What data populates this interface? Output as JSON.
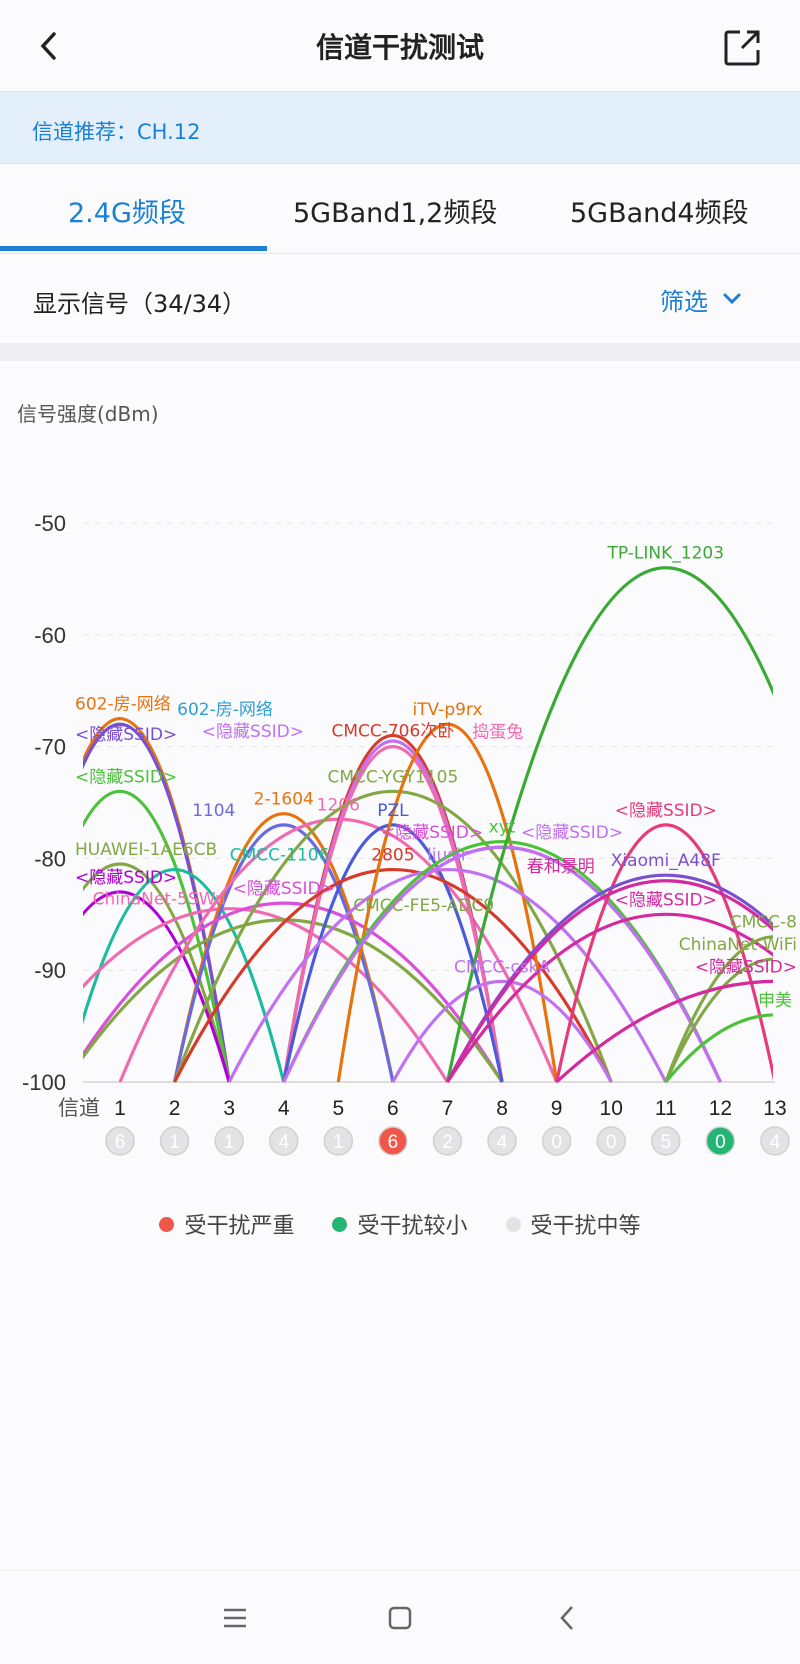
{
  "header": {
    "title": "信道干扰测试",
    "back_icon": "chevron-left-icon",
    "share_icon": "share-external-icon"
  },
  "banner": {
    "text": "信道推荐：CH.12"
  },
  "tabs": [
    {
      "label": "2.4G频段",
      "active": true
    },
    {
      "label": "5GBand1,2频段",
      "active": false
    },
    {
      "label": "5GBand4频段",
      "active": false
    }
  ],
  "filter": {
    "label": "显示信号（34/34）",
    "button": "筛选",
    "icon": "chevron-down-icon"
  },
  "chart_data": {
    "type": "line",
    "ylabel": "信号强度(dBm)",
    "xlabel": "信道",
    "ylim": [
      -100,
      -45
    ],
    "yticks": [
      -50,
      -60,
      -70,
      -80,
      -90,
      -100
    ],
    "channels": [
      1,
      2,
      3,
      4,
      5,
      6,
      7,
      8,
      9,
      10,
      11,
      12,
      13
    ],
    "grid": true,
    "networks": [
      {
        "label": "602-房-网络",
        "channel": 1,
        "dbm": -67.5,
        "width": 2,
        "color": "#e8720c"
      },
      {
        "label": "602-房-网络",
        "channel": 1,
        "dbm": -68,
        "width": 2,
        "color": "#2aa0d8"
      },
      {
        "label": "<隐藏SSID>",
        "channel": 1,
        "dbm": -68,
        "width": 2,
        "color": "#7b4fd0"
      },
      {
        "label": "<隐藏SSID>",
        "channel": 1,
        "dbm": -74,
        "width": 2,
        "color": "#4cc23a"
      },
      {
        "label": "HUAWEI-1AE6CB",
        "channel": 1,
        "dbm": -80.5,
        "width": 2,
        "color": "#82a843"
      },
      {
        "label": "<隐藏SSID>",
        "channel": 1,
        "dbm": -83,
        "width": 2,
        "color": "#b100d6"
      },
      {
        "label": "CMCC-1106",
        "channel": 2,
        "dbm": -81,
        "width": 2,
        "color": "#1abc9c"
      },
      {
        "label": "ChinaNet-5SWu",
        "channel": 3,
        "dbm": -84.5,
        "width": 4,
        "color": "#f06ab0"
      },
      {
        "label": "2-1604",
        "channel": 4,
        "dbm": -76,
        "width": 2,
        "color": "#e8720c"
      },
      {
        "label": "1104",
        "channel": 4,
        "dbm": -77,
        "width": 2,
        "color": "#6a6ae0"
      },
      {
        "label": "<隐藏SSID>",
        "channel": 4,
        "dbm": -84,
        "width": 4,
        "color": "#d94fd9"
      },
      {
        "label": "CMCC-FE5-ADC9",
        "channel": 4,
        "dbm": -85.5,
        "width": 4,
        "color": "#82a843"
      },
      {
        "label": "1206",
        "channel": 5,
        "dbm": -76.5,
        "width": 4,
        "color": "#f06ab0"
      },
      {
        "label": "CMCC-706次卧",
        "channel": 6,
        "dbm": -69,
        "width": 2,
        "color": "#d83a2a"
      },
      {
        "label": "<隐藏SSID>",
        "channel": 6,
        "dbm": -69.5,
        "width": 2,
        "color": "#c070f0"
      },
      {
        "label": "捣蛋兔",
        "channel": 6,
        "dbm": -70,
        "width": 2,
        "color": "#f06ab0"
      },
      {
        "label": "CMCC-YGY1105",
        "channel": 6,
        "dbm": -74,
        "width": 4,
        "color": "#82a843"
      },
      {
        "label": "PZL",
        "channel": 6,
        "dbm": -77,
        "width": 2,
        "color": "#4a5ad8"
      },
      {
        "label": "2805",
        "channel": 6,
        "dbm": -81,
        "width": 4,
        "color": "#d83a2a"
      },
      {
        "label": "iTV-p9rx",
        "channel": 7,
        "dbm": -68,
        "width": 2,
        "color": "#e8720c"
      },
      {
        "label": "liusir",
        "channel": 7,
        "dbm": -81,
        "width": 4,
        "color": "#c070f0"
      },
      {
        "label": "xyt",
        "channel": 8,
        "dbm": -78.5,
        "width": 4,
        "color": "#4cc23a"
      },
      {
        "label": "<隐藏SSID>",
        "channel": 8,
        "dbm": -79,
        "width": 4,
        "color": "#d94fd9"
      },
      {
        "label": "<隐藏SSID>",
        "channel": 8,
        "dbm": -79,
        "width": 4,
        "color": "#c070f0"
      },
      {
        "label": "CMCC-cskA",
        "channel": 8,
        "dbm": -91,
        "width": 2,
        "color": "#c070f0"
      },
      {
        "label": "TP-LINK_1203",
        "channel": 11,
        "dbm": -54,
        "width": 4,
        "color": "#3aaa35"
      },
      {
        "label": "<隐藏SSID>",
        "channel": 11,
        "dbm": -77,
        "width": 2,
        "color": "#e63a7a"
      },
      {
        "label": "Xiaomi_A48F",
        "channel": 11,
        "dbm": -81.5,
        "width": 4,
        "color": "#7b4fd0"
      },
      {
        "label": "春和景明",
        "channel": 11,
        "dbm": -82,
        "width": 4,
        "color": "#d42aa0"
      },
      {
        "label": "<隐藏SSID>",
        "channel": 11,
        "dbm": -85,
        "width": 4,
        "color": "#d42aa0"
      },
      {
        "label": "CMCC-8",
        "channel": 13,
        "dbm": -87,
        "width": 2,
        "color": "#82a843"
      },
      {
        "label": "ChinaNet-WiFi",
        "channel": 13,
        "dbm": -89,
        "width": 2,
        "color": "#82a843"
      },
      {
        "label": "<隐藏SSID>",
        "channel": 13,
        "dbm": -91,
        "width": 4,
        "color": "#d42aa0"
      },
      {
        "label": "申美",
        "channel": 13,
        "dbm": -94,
        "width": 2,
        "color": "#4cc23a"
      }
    ],
    "channel_counts": [
      6,
      1,
      1,
      4,
      1,
      6,
      2,
      4,
      0,
      0,
      5,
      0,
      4
    ],
    "channel_status": [
      "moderate",
      "moderate",
      "moderate",
      "moderate",
      "moderate",
      "severe",
      "moderate",
      "moderate",
      "moderate",
      "moderate",
      "moderate",
      "low",
      "moderate"
    ]
  },
  "legend": [
    {
      "label": "受干扰严重",
      "color": "#f0564a"
    },
    {
      "label": "受干扰较小",
      "color": "#22b573"
    },
    {
      "label": "受干扰中等",
      "color": "#e3e3e6"
    }
  ],
  "navbar": {
    "menu_icon": "menu-icon",
    "home_icon": "home-square-icon",
    "back_icon": "back-triangle-icon"
  }
}
